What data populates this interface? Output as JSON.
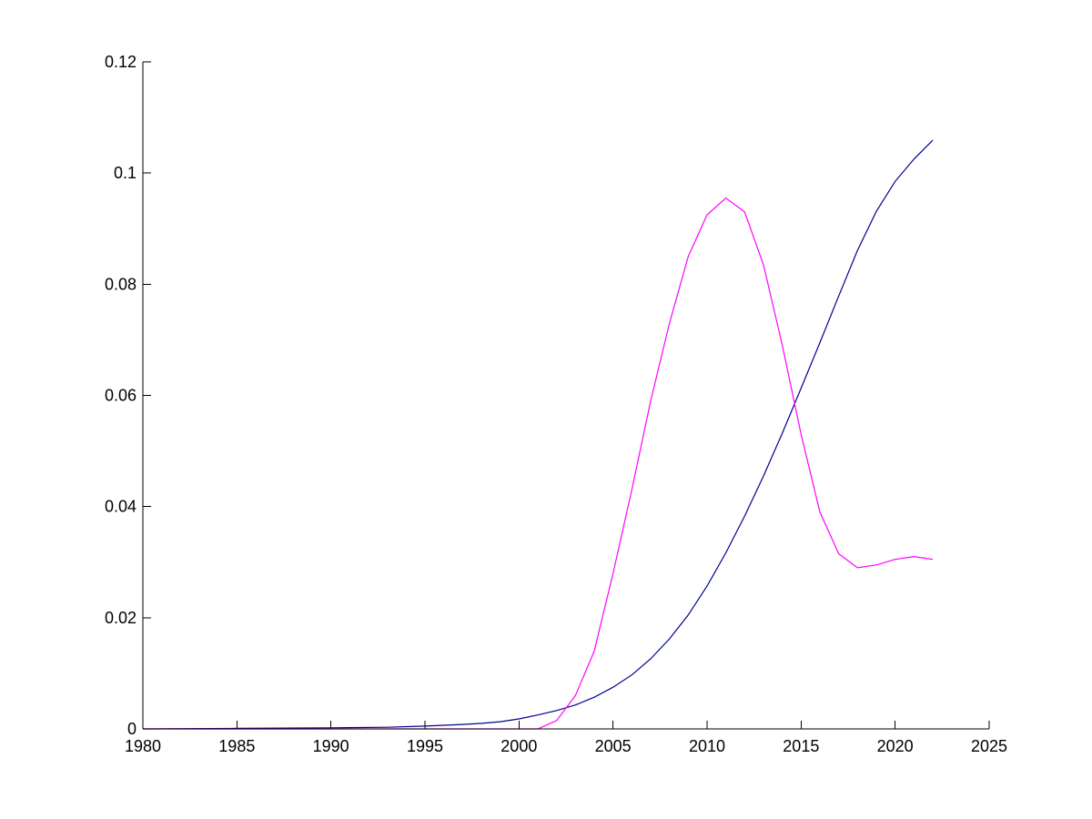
{
  "chart_data": {
    "type": "line",
    "title": "",
    "xlabel": "",
    "ylabel": "",
    "xlim": [
      1980,
      2025
    ],
    "ylim": [
      0,
      0.12
    ],
    "grid": false,
    "legend": "none",
    "x_ticks": [
      1980,
      1985,
      1990,
      1995,
      2000,
      2005,
      2010,
      2015,
      2020,
      2025
    ],
    "x_tick_labels": [
      "1980",
      "1985",
      "1990",
      "1995",
      "2000",
      "2005",
      "2010",
      "2015",
      "2020",
      "2025"
    ],
    "y_ticks": [
      0,
      0.02,
      0.04,
      0.06,
      0.08,
      0.1,
      0.12
    ],
    "y_tick_labels": [
      "0",
      "0.02",
      "0.04",
      "0.06",
      "0.08",
      "0.1",
      "0.12"
    ],
    "series": [
      {
        "color": "#00008b",
        "x": [
          1980,
          1985,
          1990,
          1993,
          1995,
          1997,
          1998,
          1999,
          2000,
          2001,
          2002,
          2003,
          2004,
          2005,
          2006,
          2007,
          2008,
          2009,
          2010,
          2011,
          2012,
          2013,
          2014,
          2015,
          2016,
          2017,
          2018,
          2019,
          2020,
          2021,
          2022
        ],
        "y": [
          0.0,
          0.0001,
          0.0002,
          0.0003,
          0.0005,
          0.0008,
          0.001,
          0.0013,
          0.0018,
          0.0025,
          0.0033,
          0.0043,
          0.0057,
          0.0075,
          0.0097,
          0.0126,
          0.0162,
          0.0205,
          0.0257,
          0.0317,
          0.0383,
          0.0455,
          0.0532,
          0.0613,
          0.0695,
          0.0779,
          0.0861,
          0.0931,
          0.0985,
          0.1025,
          0.1059
        ]
      },
      {
        "color": "#ff00ff",
        "x": [
          1980,
          1985,
          1990,
          1995,
          2000,
          2001,
          2002,
          2003,
          2004,
          2005,
          2006,
          2007,
          2008,
          2009,
          2010,
          2011,
          2012,
          2013,
          2014,
          2015,
          2016,
          2017,
          2018,
          2019,
          2020,
          2021,
          2022
        ],
        "y": [
          0.0,
          0.0,
          0.0,
          0.0,
          0.0,
          0.0,
          0.0015,
          0.006,
          0.014,
          0.028,
          0.043,
          0.059,
          0.073,
          0.085,
          0.0925,
          0.0955,
          0.093,
          0.0835,
          0.069,
          0.053,
          0.039,
          0.0315,
          0.029,
          0.0295,
          0.0305,
          0.031,
          0.0305
        ]
      }
    ]
  }
}
